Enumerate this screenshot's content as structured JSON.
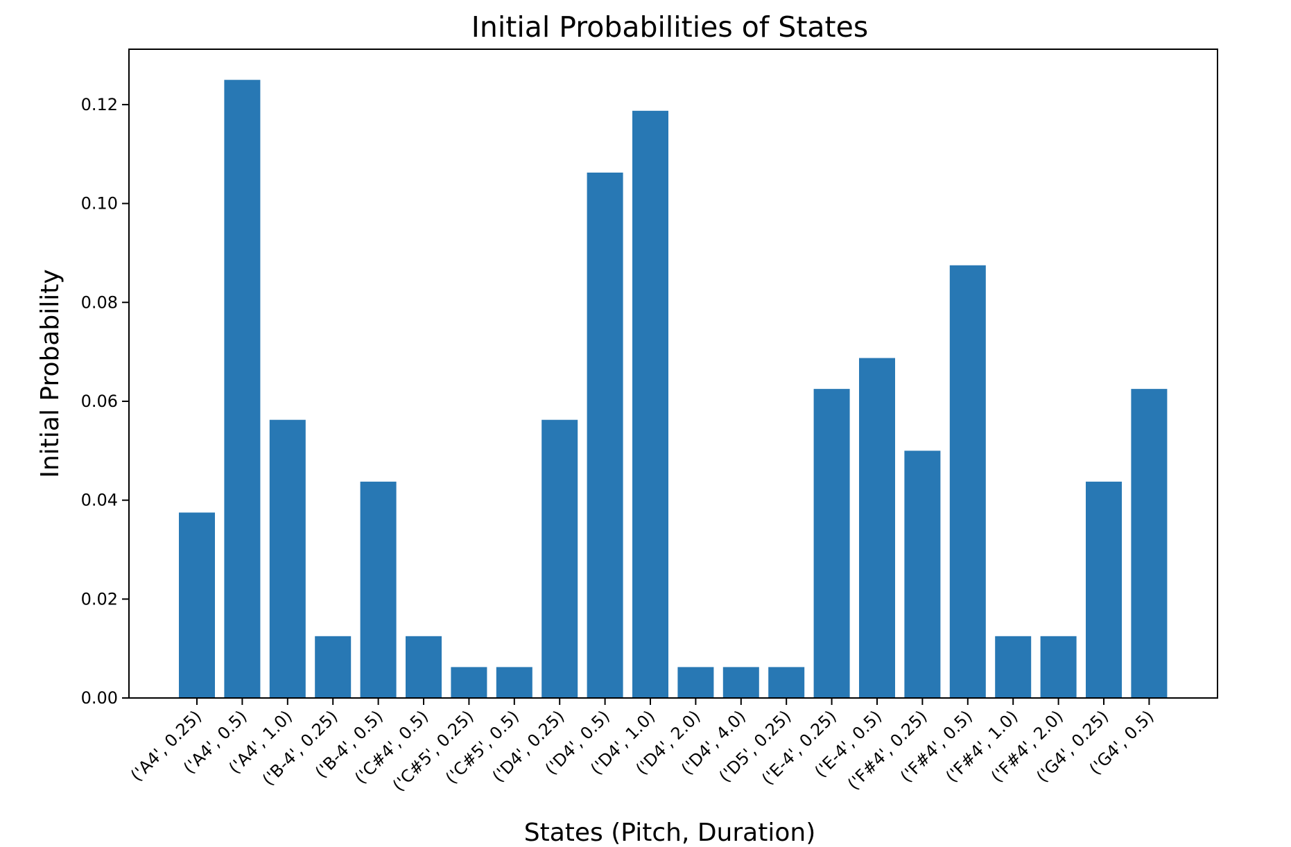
{
  "chart_data": {
    "type": "bar",
    "title": "Initial Probabilities of States",
    "xlabel": "States (Pitch, Duration)",
    "ylabel": "Initial Probability",
    "ylim": [
      0,
      0.1312
    ],
    "yticks": [
      0.0,
      0.02,
      0.04,
      0.06,
      0.08,
      0.1,
      0.12
    ],
    "ytick_labels": [
      "0.00",
      "0.02",
      "0.04",
      "0.06",
      "0.08",
      "0.10",
      "0.12"
    ],
    "grid": false,
    "legend": "none",
    "bar_color": "#2878b4",
    "categories": [
      "('A4', 0.25)",
      "('A4', 0.5)",
      "('A4', 1.0)",
      "('B-4', 0.25)",
      "('B-4', 0.5)",
      "('C#4', 0.5)",
      "('C#5', 0.25)",
      "('C#5', 0.5)",
      "('D4', 0.25)",
      "('D4', 0.5)",
      "('D4', 1.0)",
      "('D4', 2.0)",
      "('D4', 4.0)",
      "('D5', 0.25)",
      "('E-4', 0.25)",
      "('E-4', 0.5)",
      "('F#4', 0.25)",
      "('F#4', 0.5)",
      "('F#4', 1.0)",
      "('F#4', 2.0)",
      "('G4', 0.25)",
      "('G4', 0.5)"
    ],
    "values": [
      0.0375,
      0.125,
      0.05625,
      0.0125,
      0.04375,
      0.0125,
      0.00625,
      0.00625,
      0.05625,
      0.10625,
      0.11875,
      0.00625,
      0.00625,
      0.00625,
      0.0625,
      0.06875,
      0.05,
      0.0875,
      0.0125,
      0.0125,
      0.04375,
      0.0625
    ]
  }
}
